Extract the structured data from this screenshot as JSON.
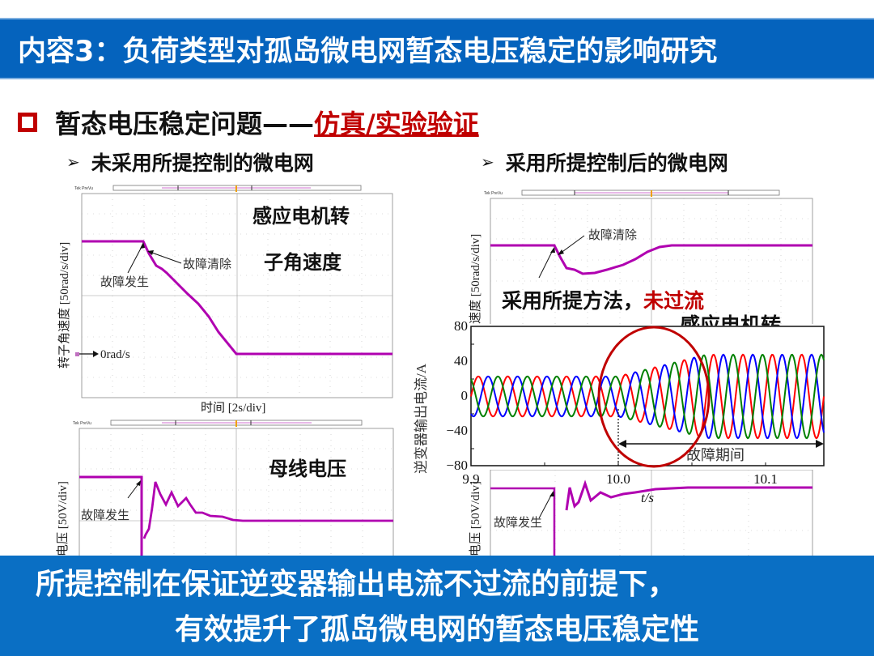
{
  "title": "内容3：负荷类型对孤岛微电网暂态电压稳定的影响研究",
  "heading": {
    "bullet_icon": "hollow-square-icon",
    "text": "暂态电压稳定问题——",
    "highlight": "仿真/实验验证"
  },
  "left_column": {
    "subtitle": "未采用所提控制的微电网",
    "top_scope": {
      "brand": "Tek PreVu",
      "overlay_title_line1": "感应电机转",
      "overlay_title_line2": "子角速度",
      "ylabel": "转子角速度 [50rad/s/div]",
      "xlabel": "时间 [2s/div]",
      "annotation_fault": "故障发生",
      "annotation_clear": "故障清除",
      "ref_marker": "0rad/s"
    },
    "bottom_scope": {
      "brand": "Tek PreVu",
      "overlay_title": "母线电压",
      "ylabel": "电压 [50V/div]",
      "annotation_fault": "故障发生"
    }
  },
  "right_column": {
    "subtitle": "采用所提控制后的微电网",
    "top_scope": {
      "brand": "Tek PreVu",
      "ylabel": "速度 [50rad/s/div]",
      "annotation_clear": "故障清除"
    },
    "overlay_caption_black": "采用所提方法，",
    "overlay_caption_red": "未过流",
    "overlay_partial_title": "感应电机转",
    "bottom_scope": {
      "ylabel": "电压 [50V/div]",
      "annotation_fault": "故障发生"
    }
  },
  "chart_data": [
    {
      "type": "line",
      "title": "逆变器输出电流",
      "xlabel": "t/s",
      "ylabel": "逆变器输出电流/A",
      "x_ticks": [
        "9.9",
        "10.0",
        "10.1"
      ],
      "y_ticks": [
        "80",
        "40",
        "0",
        "−40",
        "−80"
      ],
      "xlim": [
        9.9,
        10.14
      ],
      "ylim": [
        -80,
        80
      ],
      "series": [
        {
          "name": "phase-a",
          "color": "#ff0000",
          "amplitude_before": 23,
          "amplitude_after": 48
        },
        {
          "name": "phase-b",
          "color": "#0000ff",
          "amplitude_before": 23,
          "amplitude_after": 48
        },
        {
          "name": "phase-c",
          "color": "#008000",
          "amplitude_before": 23,
          "amplitude_after": 48
        }
      ],
      "fault_start": 10.0,
      "annotation": "故障期间",
      "highlight_circle_color": "#c00000",
      "frequency_hz": 50
    }
  ],
  "bottom_banner": {
    "line1": "所提控制在保证逆变器输出电流不过流的前提下，",
    "line2": "有效提升了孤岛微电网的暂态电压稳定性"
  },
  "colors": {
    "title_bg": "#0563bd",
    "banner_bg": "#0a6fc4",
    "accent_red": "#c00000",
    "trace_magenta": "#b000b0"
  }
}
